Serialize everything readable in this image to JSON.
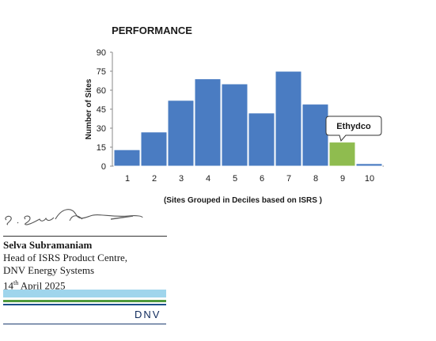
{
  "chart_data": {
    "type": "bar",
    "title": "PERFORMANCE",
    "xlabel": "(Sites Grouped  in Deciles  based on  ISRS )",
    "ylabel": "Number of Sites",
    "categories": [
      "1",
      "2",
      "3",
      "4",
      "5",
      "6",
      "7",
      "8",
      "9",
      "10"
    ],
    "values": [
      13,
      27,
      52,
      69,
      65,
      42,
      75,
      49,
      19,
      2
    ],
    "ylim": [
      0,
      90
    ],
    "yticks": [
      "0",
      "15",
      "30",
      "45",
      "60",
      "75",
      "90"
    ],
    "grid": false,
    "bar_color": "#4a7cc2",
    "highlight_color": "#8fbc4f",
    "highlight_index": 8,
    "annotation": "Ethydco"
  },
  "signature": {
    "name": "Selva Subramaniam",
    "line1": "Head of ISRS Product Centre,",
    "line2": "DNV Energy Systems",
    "date_day": "14",
    "date_suffix": "th",
    "date_rest": " April 2025"
  },
  "logo": {
    "text": "DNV"
  }
}
